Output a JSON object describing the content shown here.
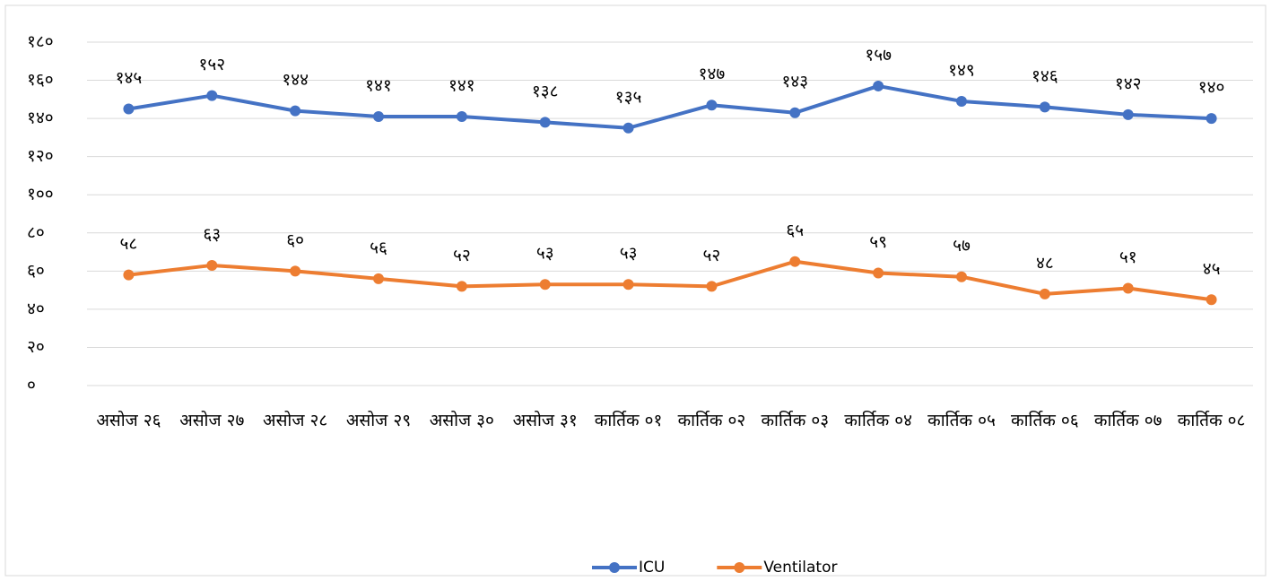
{
  "chart_data": {
    "type": "line",
    "categories": [
      "असोज २६",
      "असोज २७",
      "असोज २८",
      "असोज २९",
      "असोज ३०",
      "असोज ३१",
      "कार्तिक ०१",
      "कार्तिक ०२",
      "कार्तिक ०३",
      "कार्तिक ०४",
      "कार्तिक ०५",
      "कार्तिक ०६",
      "कार्तिक ०७",
      "कार्तिक ०८"
    ],
    "series": [
      {
        "name": "ICU",
        "color": "#4472c4",
        "values": [
          145,
          152,
          144,
          141,
          141,
          138,
          135,
          147,
          143,
          157,
          149,
          146,
          142,
          140
        ],
        "value_labels": [
          "१४५",
          "१५२",
          "१४४",
          "१४१",
          "१४१",
          "१३८",
          "१३५",
          "१४७",
          "१४३",
          "१५७",
          "१४९",
          "१४६",
          "१४२",
          "१४०"
        ]
      },
      {
        "name": "Ventilator",
        "color": "#ed7d31",
        "values": [
          58,
          63,
          60,
          56,
          52,
          53,
          53,
          52,
          65,
          59,
          57,
          48,
          51,
          45
        ],
        "value_labels": [
          "५८",
          "६३",
          "६०",
          "५६",
          "५२",
          "५३",
          "५३",
          "५२",
          "६५",
          "५९",
          "५७",
          "४८",
          "५१",
          "४५"
        ]
      }
    ],
    "ylim": [
      0,
      180
    ],
    "yticks": [
      {
        "value": 0,
        "label": "०"
      },
      {
        "value": 20,
        "label": "२०"
      },
      {
        "value": 40,
        "label": "४०"
      },
      {
        "value": 60,
        "label": "६०"
      },
      {
        "value": 80,
        "label": "८०"
      },
      {
        "value": 100,
        "label": "१००"
      },
      {
        "value": 120,
        "label": "१२०"
      },
      {
        "value": 140,
        "label": "१४०"
      },
      {
        "value": 160,
        "label": "१६०"
      },
      {
        "value": 180,
        "label": "१८०"
      }
    ],
    "grid": true,
    "legend": "bottom"
  }
}
